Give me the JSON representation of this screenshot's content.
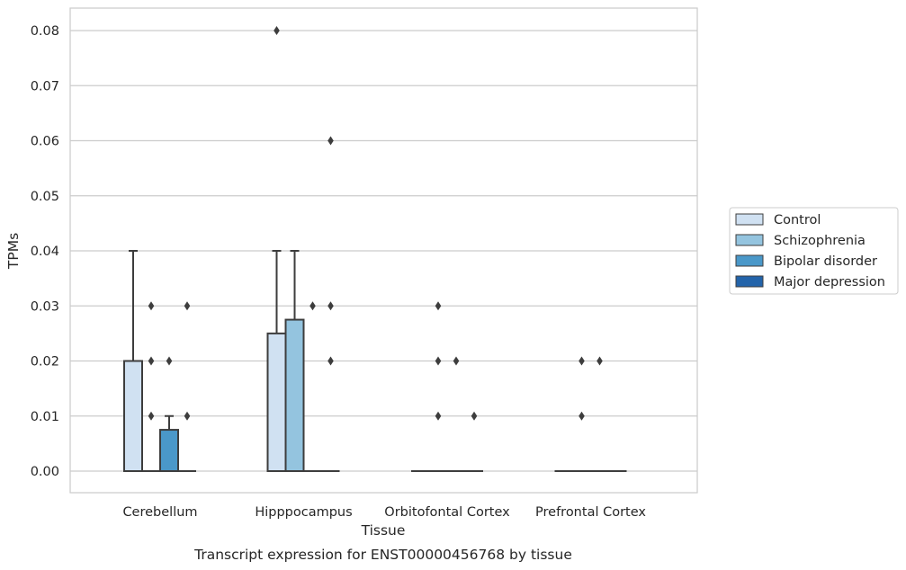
{
  "chart_data": {
    "type": "box",
    "title": "",
    "caption": "Transcript expression for ENST00000456768 by tissue",
    "xlabel": "Tissue",
    "ylabel": "TPMs",
    "ylim": [
      -0.004,
      0.084
    ],
    "yticks": [
      "0.00",
      "0.01",
      "0.02",
      "0.03",
      "0.04",
      "0.05",
      "0.06",
      "0.07",
      "0.08"
    ],
    "grid": "horizontal",
    "legend_position": "right",
    "categories": [
      "Cerebellum",
      "Hipppocampus",
      "Orbitofontal Cortex",
      "Prefrontal Cortex"
    ],
    "series": [
      {
        "name": "Control",
        "color": "#d0e1f2",
        "boxes": [
          {
            "q1": 0.0,
            "median": 0.0,
            "q3": 0.02,
            "whisker_low": 0.0,
            "whisker_high": 0.04,
            "outliers": []
          },
          {
            "q1": 0.0,
            "median": 0.0,
            "q3": 0.025,
            "whisker_low": 0.0,
            "whisker_high": 0.04,
            "outliers": [
              0.08
            ]
          },
          {
            "q1": 0.0,
            "median": 0.0,
            "q3": 0.0,
            "whisker_low": 0.0,
            "whisker_high": 0.0,
            "outliers": []
          },
          {
            "q1": 0.0,
            "median": 0.0,
            "q3": 0.0,
            "whisker_low": 0.0,
            "whisker_high": 0.0,
            "outliers": []
          }
        ]
      },
      {
        "name": "Schizophrenia",
        "color": "#94c4df",
        "boxes": [
          {
            "q1": 0.0,
            "median": 0.0,
            "q3": 0.0,
            "whisker_low": 0.0,
            "whisker_high": 0.0,
            "outliers": [
              0.01,
              0.02,
              0.03
            ]
          },
          {
            "q1": 0.0,
            "median": 0.0,
            "q3": 0.0275,
            "whisker_low": 0.0,
            "whisker_high": 0.04,
            "outliers": []
          },
          {
            "q1": 0.0,
            "median": 0.0,
            "q3": 0.0,
            "whisker_low": 0.0,
            "whisker_high": 0.0,
            "outliers": [
              0.01,
              0.02,
              0.03
            ]
          },
          {
            "q1": 0.0,
            "median": 0.0,
            "q3": 0.0,
            "whisker_low": 0.0,
            "whisker_high": 0.0,
            "outliers": [
              0.01,
              0.02
            ]
          }
        ]
      },
      {
        "name": "Bipolar disorder",
        "color": "#4a98c9",
        "boxes": [
          {
            "q1": 0.0,
            "median": 0.0,
            "q3": 0.0075,
            "whisker_low": 0.0,
            "whisker_high": 0.01,
            "outliers": [
              0.02
            ]
          },
          {
            "q1": 0.0,
            "median": 0.0,
            "q3": 0.0,
            "whisker_low": 0.0,
            "whisker_high": 0.0,
            "outliers": [
              0.03
            ]
          },
          {
            "q1": 0.0,
            "median": 0.0,
            "q3": 0.0,
            "whisker_low": 0.0,
            "whisker_high": 0.0,
            "outliers": [
              0.02
            ]
          },
          {
            "q1": 0.0,
            "median": 0.0,
            "q3": 0.0,
            "whisker_low": 0.0,
            "whisker_high": 0.0,
            "outliers": [
              0.02
            ]
          }
        ]
      },
      {
        "name": "Major depression",
        "color": "#2364aa",
        "boxes": [
          {
            "q1": 0.0,
            "median": 0.0,
            "q3": 0.0,
            "whisker_low": 0.0,
            "whisker_high": 0.0,
            "outliers": [
              0.01,
              0.03
            ]
          },
          {
            "q1": 0.0,
            "median": 0.0,
            "q3": 0.0,
            "whisker_low": 0.0,
            "whisker_high": 0.0,
            "outliers": [
              0.02,
              0.03,
              0.06
            ]
          },
          {
            "q1": 0.0,
            "median": 0.0,
            "q3": 0.0,
            "whisker_low": 0.0,
            "whisker_high": 0.0,
            "outliers": [
              0.01
            ]
          },
          {
            "q1": 0.0,
            "median": 0.0,
            "q3": 0.0,
            "whisker_low": 0.0,
            "whisker_high": 0.0,
            "outliers": []
          }
        ]
      }
    ]
  }
}
